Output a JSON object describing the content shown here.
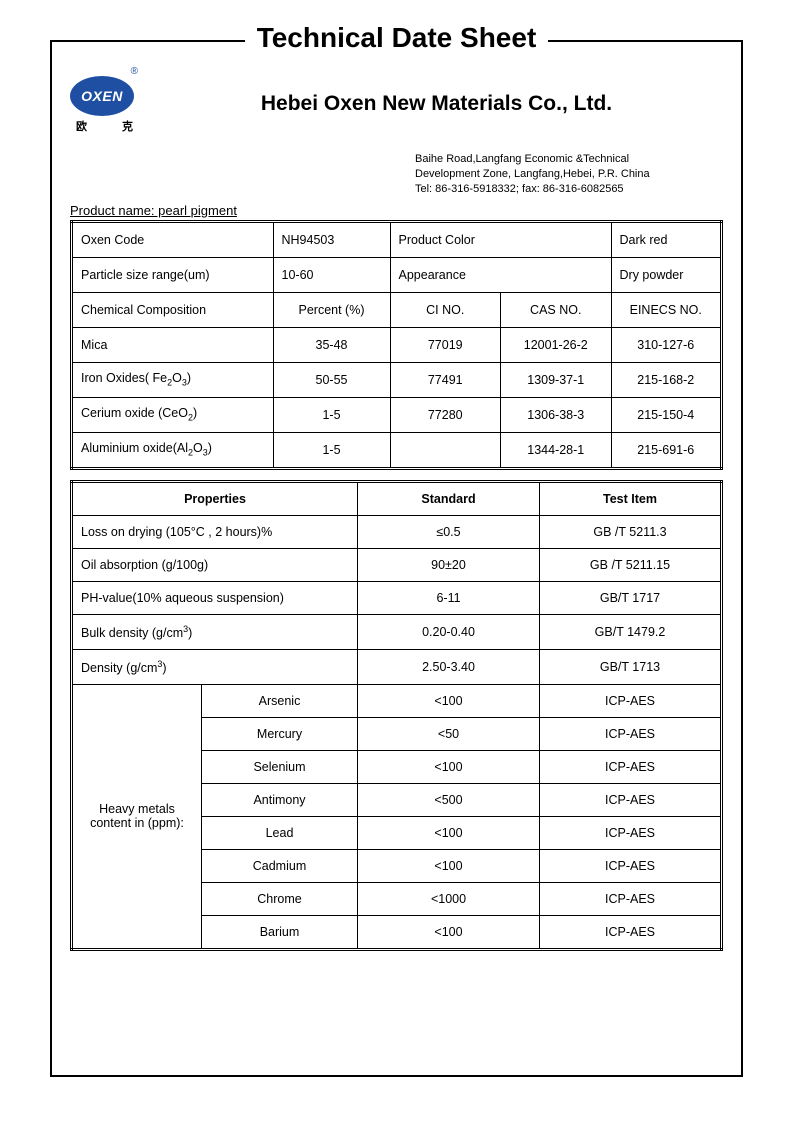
{
  "doc_title": "Technical Date Sheet",
  "logo": {
    "brand": "OXEN",
    "cn": "欧    克"
  },
  "company": "Hebei Oxen New Materials Co., Ltd.",
  "address": {
    "line1": "Baihe Road,Langfang Economic &Technical",
    "line2": "Development Zone, Langfang,Hebei, P.R. China",
    "line3": "Tel: 86-316-5918332;     fax: 86-316-6082565"
  },
  "product_name": "Product name: pearl pigment",
  "t1": {
    "r1": {
      "c1": "Oxen Code",
      "c2": "NH94503",
      "c3": "Product Color",
      "c4": "Dark red"
    },
    "r2": {
      "c1": "Particle size range(um)",
      "c2": "10-60",
      "c3": "Appearance",
      "c4": "Dry powder"
    },
    "hdr": {
      "c1": "Chemical Composition",
      "c2": "Percent (%)",
      "c3": "CI NO.",
      "c4": "CAS NO.",
      "c5": "EINECS NO."
    },
    "rows": [
      {
        "name_html": "Mica",
        "pct": "35-48",
        "ci": "77019",
        "cas": "12001-26-2",
        "einecs": "310-127-6"
      },
      {
        "name_html": "Iron Oxides( Fe<sub>2</sub>O<sub>3</sub>)",
        "pct": "50-55",
        "ci": "77491",
        "cas": "1309-37-1",
        "einecs": "215-168-2"
      },
      {
        "name_html": "Cerium oxide (CeO<sub>2</sub>)",
        "pct": "1-5",
        "ci": "77280",
        "cas": "1306-38-3",
        "einecs": "215-150-4"
      },
      {
        "name_html": "Aluminium oxide(Al<sub>2</sub>O<sub>3</sub>)",
        "pct": "1-5",
        "ci": "",
        "cas": "1344-28-1",
        "einecs": "215-691-6"
      }
    ]
  },
  "t2": {
    "hdr": {
      "c1": "Properties",
      "c2": "Standard",
      "c3": "Test Item"
    },
    "props": [
      {
        "name_html": "Loss on drying (105°C , 2 hours)%",
        "std": "≤0.5",
        "test": "GB /T 5211.3"
      },
      {
        "name_html": "Oil absorption    (g/100g)",
        "std": "90±20",
        "test": "GB /T 5211.15"
      },
      {
        "name_html": "PH-value(10% aqueous suspension)",
        "std": "6-11",
        "test": "GB/T 1717"
      },
      {
        "name_html": "Bulk density (g/cm<sup>3</sup>)",
        "std": "0.20-0.40",
        "test": "GB/T 1479.2"
      },
      {
        "name_html": "Density (g/cm<sup>3</sup>)",
        "std": "2.50-3.40",
        "test": "GB/T 1713"
      }
    ],
    "metals_label_html": "Heavy metals<br>content in (ppm):",
    "metals": [
      {
        "name": "Arsenic",
        "std": "<100",
        "test": "ICP-AES"
      },
      {
        "name": "Mercury",
        "std": "<50",
        "test": "ICP-AES"
      },
      {
        "name": "Selenium",
        "std": "<100",
        "test": "ICP-AES"
      },
      {
        "name": "Antimony",
        "std": "<500",
        "test": "ICP-AES"
      },
      {
        "name": "Lead",
        "std": "<100",
        "test": "ICP-AES"
      },
      {
        "name": "Cadmium",
        "std": "<100",
        "test": "ICP-AES"
      },
      {
        "name": "Chrome",
        "std": "<1000",
        "test": "ICP-AES"
      },
      {
        "name": "Barium",
        "std": "<100",
        "test": "ICP-AES"
      }
    ]
  }
}
